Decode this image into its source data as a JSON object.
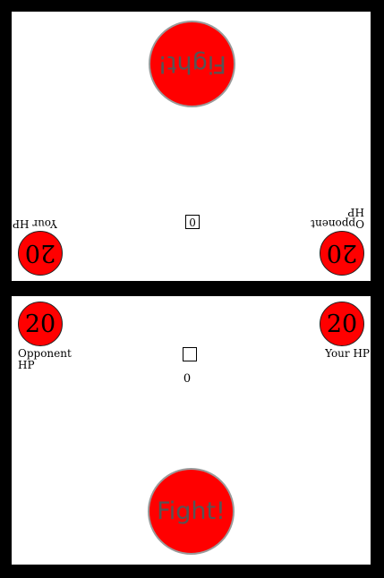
{
  "players": {
    "top": {
      "fight_label": "Fight!",
      "counter_box": "0",
      "your_hp": {
        "label": "Your HP",
        "value": "20"
      },
      "opponent_hp": {
        "label": "Opponent HP",
        "value": "20"
      }
    },
    "bottom": {
      "fight_label": "Fight!",
      "counter_box": "",
      "counter_value": "0",
      "your_hp": {
        "label": "Your HP",
        "value": "20"
      },
      "opponent_hp": {
        "label": "Opponent HP",
        "value": "20"
      }
    }
  },
  "colors": {
    "background": "#000000",
    "panel": "#ffffff",
    "hp_circle": "#ff0000",
    "fight_button": "#ff0000",
    "fight_text": "#555555"
  }
}
